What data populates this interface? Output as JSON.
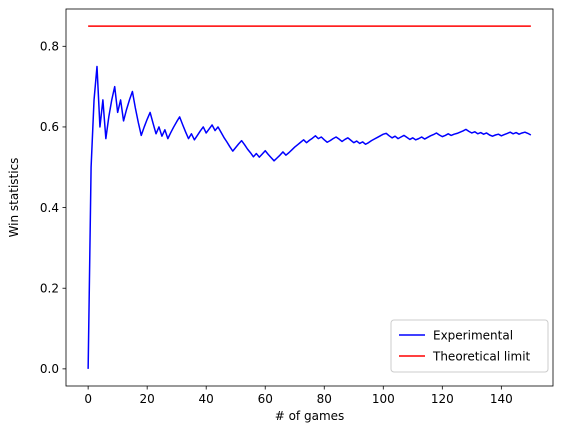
{
  "chart_data": {
    "type": "line",
    "title": "",
    "xlabel": "# of games",
    "ylabel": "Win statistics",
    "xlim": [
      -7.5,
      157.5
    ],
    "ylim": [
      -0.0425,
      0.8925
    ],
    "xticks": [
      0,
      20,
      40,
      60,
      80,
      100,
      120,
      140
    ],
    "xtick_labels": [
      "0",
      "20",
      "40",
      "60",
      "80",
      "100",
      "120",
      "140"
    ],
    "yticks": [
      0.0,
      0.2,
      0.4,
      0.6,
      0.8
    ],
    "ytick_labels": [
      "0.0",
      "0.2",
      "0.4",
      "0.6",
      "0.8"
    ],
    "grid": false,
    "legend_position": "lower-right",
    "series": [
      {
        "name": "Experimental",
        "color": "#0000ff",
        "x": [
          0,
          1,
          2,
          3,
          4,
          5,
          6,
          7,
          8,
          9,
          10,
          11,
          12,
          13,
          14,
          15,
          16,
          17,
          18,
          19,
          20,
          21,
          22,
          23,
          24,
          25,
          26,
          27,
          28,
          29,
          30,
          31,
          32,
          33,
          34,
          35,
          36,
          37,
          38,
          39,
          40,
          41,
          42,
          43,
          44,
          45,
          46,
          47,
          48,
          49,
          50,
          51,
          52,
          53,
          54,
          55,
          56,
          57,
          58,
          59,
          60,
          61,
          62,
          63,
          64,
          65,
          66,
          67,
          68,
          69,
          70,
          71,
          72,
          73,
          74,
          75,
          76,
          77,
          78,
          79,
          80,
          81,
          82,
          83,
          84,
          85,
          86,
          87,
          88,
          89,
          90,
          91,
          92,
          93,
          94,
          95,
          96,
          97,
          98,
          99,
          100,
          101,
          102,
          103,
          104,
          105,
          106,
          107,
          108,
          109,
          110,
          111,
          112,
          113,
          114,
          115,
          116,
          117,
          118,
          119,
          120,
          121,
          122,
          123,
          124,
          125,
          126,
          127,
          128,
          129,
          130,
          131,
          132,
          133,
          134,
          135,
          136,
          137,
          138,
          139,
          140,
          141,
          142,
          143,
          144,
          145,
          146,
          147,
          148,
          149,
          150
        ],
        "y": [
          0.0,
          0.5,
          0.667,
          0.75,
          0.6,
          0.667,
          0.571,
          0.625,
          0.667,
          0.7,
          0.636,
          0.667,
          0.615,
          0.643,
          0.667,
          0.688,
          0.647,
          0.611,
          0.579,
          0.6,
          0.619,
          0.636,
          0.609,
          0.583,
          0.6,
          0.577,
          0.593,
          0.571,
          0.586,
          0.6,
          0.613,
          0.625,
          0.606,
          0.588,
          0.571,
          0.583,
          0.568,
          0.579,
          0.59,
          0.6,
          0.585,
          0.595,
          0.605,
          0.591,
          0.6,
          0.587,
          0.574,
          0.563,
          0.551,
          0.54,
          0.549,
          0.558,
          0.566,
          0.556,
          0.545,
          0.536,
          0.526,
          0.534,
          0.525,
          0.533,
          0.541,
          0.532,
          0.524,
          0.516,
          0.523,
          0.53,
          0.538,
          0.53,
          0.536,
          0.543,
          0.55,
          0.556,
          0.562,
          0.568,
          0.561,
          0.567,
          0.572,
          0.578,
          0.571,
          0.575,
          0.568,
          0.562,
          0.566,
          0.571,
          0.575,
          0.57,
          0.564,
          0.569,
          0.573,
          0.567,
          0.561,
          0.565,
          0.559,
          0.563,
          0.557,
          0.561,
          0.566,
          0.57,
          0.574,
          0.578,
          0.582,
          0.584,
          0.578,
          0.573,
          0.577,
          0.571,
          0.575,
          0.579,
          0.574,
          0.569,
          0.573,
          0.568,
          0.571,
          0.575,
          0.57,
          0.574,
          0.578,
          0.581,
          0.585,
          0.58,
          0.576,
          0.579,
          0.583,
          0.579,
          0.582,
          0.584,
          0.587,
          0.59,
          0.594,
          0.589,
          0.585,
          0.588,
          0.583,
          0.586,
          0.582,
          0.585,
          0.58,
          0.577,
          0.58,
          0.582,
          0.578,
          0.581,
          0.584,
          0.587,
          0.583,
          0.586,
          0.582,
          0.585,
          0.587,
          0.584,
          0.58
        ]
      },
      {
        "name": "Theoretical limit",
        "color": "#ff0000",
        "x": [
          0,
          150
        ],
        "y": [
          0.85,
          0.85
        ]
      }
    ]
  }
}
